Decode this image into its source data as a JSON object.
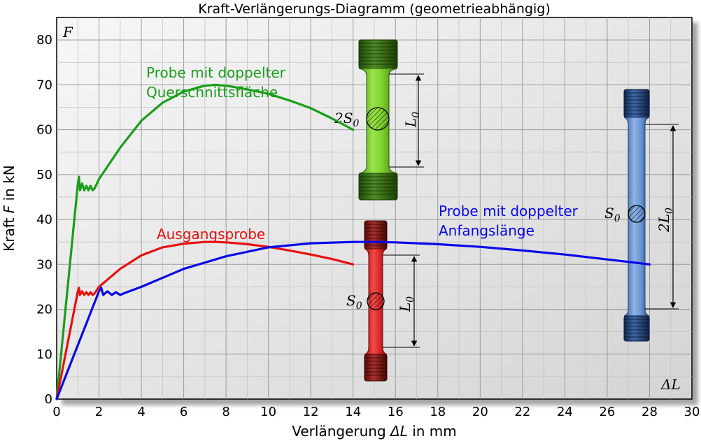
{
  "chart_data": {
    "type": "line",
    "title": "Kraft-Verlängerungs-Diagramm (geometrieabhängig)",
    "xlabel_parts": [
      "Verlängerung ",
      "ΔL",
      " in mm"
    ],
    "ylabel_parts": [
      "Kraft ",
      "F",
      " in kN"
    ],
    "x_corner_label": "ΔL",
    "y_corner_label": "F",
    "xlim": [
      0,
      30
    ],
    "ylim": [
      0,
      85
    ],
    "xticks": [
      0,
      2,
      4,
      6,
      8,
      10,
      12,
      14,
      16,
      18,
      20,
      22,
      24,
      26,
      28,
      30
    ],
    "yticks": [
      0,
      10,
      20,
      30,
      40,
      50,
      60,
      70,
      80
    ],
    "grid": true,
    "series": [
      {
        "name_lines": [
          "Probe mit doppelter",
          "Querschnittsfläche"
        ],
        "color": "#1a9e1a",
        "points": [
          [
            0,
            0
          ],
          [
            1.0,
            48
          ],
          [
            1.05,
            49.5
          ],
          [
            1.1,
            46.5
          ],
          [
            1.2,
            48
          ],
          [
            1.3,
            46.5
          ],
          [
            1.4,
            47.5
          ],
          [
            1.5,
            46.5
          ],
          [
            1.6,
            47.5
          ],
          [
            1.7,
            46.5
          ],
          [
            1.8,
            47
          ],
          [
            2,
            49
          ],
          [
            3,
            56
          ],
          [
            4,
            62
          ],
          [
            5,
            66
          ],
          [
            6,
            68.5
          ],
          [
            7,
            69.8
          ],
          [
            7.5,
            70
          ],
          [
            8,
            69.8
          ],
          [
            9,
            69
          ],
          [
            10,
            68
          ],
          [
            11,
            66.5
          ],
          [
            12,
            64.8
          ],
          [
            13,
            62.5
          ],
          [
            14,
            60
          ]
        ]
      },
      {
        "name_lines": [
          "Ausgangsprobe"
        ],
        "color": "#e81010",
        "points": [
          [
            0,
            0
          ],
          [
            1.0,
            24
          ],
          [
            1.05,
            24.8
          ],
          [
            1.1,
            23.2
          ],
          [
            1.2,
            24
          ],
          [
            1.3,
            23.2
          ],
          [
            1.4,
            23.8
          ],
          [
            1.5,
            23.2
          ],
          [
            1.6,
            23.8
          ],
          [
            1.7,
            23.2
          ],
          [
            1.8,
            23.6
          ],
          [
            2,
            25
          ],
          [
            3,
            29
          ],
          [
            4,
            32
          ],
          [
            5,
            33.8
          ],
          [
            6,
            34.6
          ],
          [
            7,
            35
          ],
          [
            7.5,
            35
          ],
          [
            8,
            34.9
          ],
          [
            9,
            34.5
          ],
          [
            10,
            33.9
          ],
          [
            11,
            33.1
          ],
          [
            12,
            32.2
          ],
          [
            13,
            31.2
          ],
          [
            14,
            30
          ]
        ]
      },
      {
        "name_lines": [
          "Probe mit doppelter",
          "Anfangslänge"
        ],
        "color": "#0808e8",
        "points": [
          [
            0,
            0
          ],
          [
            2.0,
            24
          ],
          [
            2.1,
            24.8
          ],
          [
            2.2,
            23.2
          ],
          [
            2.4,
            24
          ],
          [
            2.6,
            23.2
          ],
          [
            2.8,
            23.8
          ],
          [
            3.0,
            23.2
          ],
          [
            3.2,
            23.6
          ],
          [
            4,
            25
          ],
          [
            6,
            29
          ],
          [
            8,
            31.8
          ],
          [
            10,
            33.8
          ],
          [
            12,
            34.7
          ],
          [
            14,
            35
          ],
          [
            15,
            35
          ],
          [
            16,
            34.9
          ],
          [
            18,
            34.5
          ],
          [
            20,
            33.9
          ],
          [
            22,
            33.1
          ],
          [
            24,
            32.2
          ],
          [
            26,
            31.1
          ],
          [
            28,
            30
          ]
        ]
      }
    ],
    "specimens": [
      {
        "name": "green",
        "area_label": "2S",
        "area_sub": "0",
        "length_label": "L",
        "length_sub": "0"
      },
      {
        "name": "red",
        "area_label": "S",
        "area_sub": "0",
        "length_label": "L",
        "length_sub": "0"
      },
      {
        "name": "blue",
        "area_label": "S",
        "area_sub": "0",
        "length_label": "2L",
        "length_sub": "0"
      }
    ]
  }
}
